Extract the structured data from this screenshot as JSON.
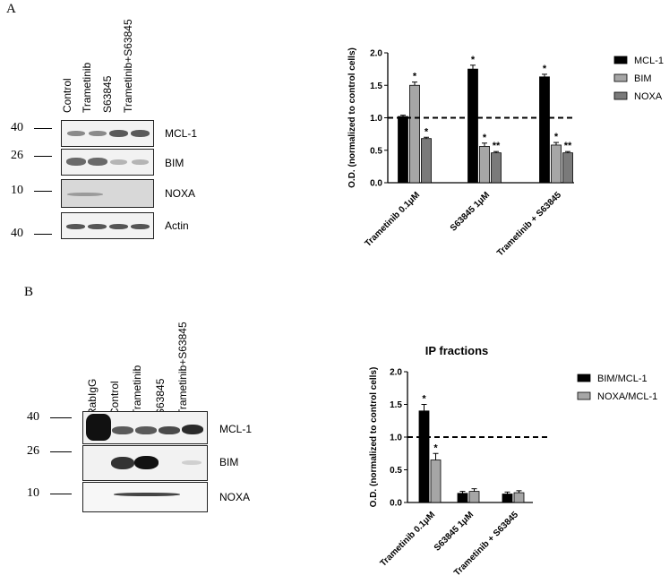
{
  "panel_a": {
    "letter": "A",
    "blot": {
      "lanes": [
        "Control",
        "Trametinib",
        "S63845",
        "Trametinib+S63845"
      ],
      "mw_markers": [
        "40",
        "26",
        "10",
        "40"
      ],
      "rows": [
        "MCL-1",
        "BIM",
        "NOXA",
        "Actin"
      ]
    }
  },
  "panel_b": {
    "letter": "B",
    "blot": {
      "lanes": [
        "RabIgG",
        "Control",
        "Trametinib",
        "S63845",
        "Trametinib+S63845"
      ],
      "mw_markers": [
        "40",
        "26",
        "10"
      ],
      "rows": [
        "MCL-1",
        "BIM",
        "NOXA"
      ]
    }
  },
  "chart_data": [
    {
      "type": "bar",
      "title": "",
      "xlabel": "",
      "ylabel": "O.D. (normalized to control cells)",
      "ylim": [
        0,
        2.0
      ],
      "yticks": [
        "0.0",
        "0.5",
        "1.0",
        "1.5",
        "2.0"
      ],
      "categories": [
        "Trametinib 0.1μM",
        "S63845 1μM",
        "Trametinib + S63845"
      ],
      "reference_line": 1.0,
      "legend_position": "top-right",
      "series": [
        {
          "name": "MCL-1",
          "color": "#000000",
          "values": [
            1.02,
            1.75,
            1.63
          ],
          "errors": [
            0.02,
            0.06,
            0.04
          ],
          "sig": [
            "",
            "*",
            "*"
          ]
        },
        {
          "name": "BIM",
          "color": "#a6a6a6",
          "values": [
            1.5,
            0.56,
            0.58
          ],
          "errors": [
            0.05,
            0.05,
            0.04
          ],
          "sig": [
            "*",
            "*",
            "*"
          ]
        },
        {
          "name": "NOXA",
          "color": "#7a7a7a",
          "values": [
            0.68,
            0.46,
            0.46
          ],
          "errors": [
            0.02,
            0.02,
            0.02
          ],
          "sig": [
            "*",
            "**",
            "**"
          ]
        }
      ]
    },
    {
      "type": "bar",
      "title": "IP fractions",
      "xlabel": "",
      "ylabel": "O.D. (normalized to control cells)",
      "ylim": [
        0,
        2.0
      ],
      "yticks": [
        "0.0",
        "0.5",
        "1.0",
        "1.5",
        "2.0"
      ],
      "categories": [
        "Trametinib 0.1μM",
        "S63845 1μM",
        "Trametinib + S63845"
      ],
      "reference_line": 1.0,
      "legend_position": "top-right",
      "series": [
        {
          "name": "BIM/MCL-1",
          "color": "#000000",
          "values": [
            1.4,
            0.14,
            0.13
          ],
          "errors": [
            0.1,
            0.03,
            0.03
          ],
          "sig": [
            "*",
            "",
            ""
          ]
        },
        {
          "name": "NOXA/MCL-1",
          "color": "#a6a6a6",
          "values": [
            0.65,
            0.17,
            0.15
          ],
          "errors": [
            0.1,
            0.04,
            0.03
          ],
          "sig": [
            "*",
            "",
            ""
          ]
        }
      ]
    }
  ]
}
